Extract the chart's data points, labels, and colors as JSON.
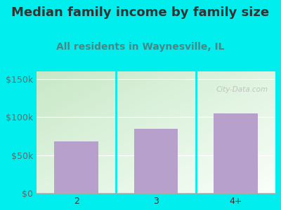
{
  "categories": [
    "2",
    "3",
    "4+"
  ],
  "values": [
    68000,
    85000,
    105000
  ],
  "bar_color": "#b8a0cc",
  "title": "Median family income by family size",
  "subtitle": "All residents in Waynesville, IL",
  "title_color": "#333333",
  "subtitle_color": "#448888",
  "bg_color": "#00eeee",
  "yticks": [
    0,
    50000,
    100000,
    150000
  ],
  "ytick_labels": [
    "$0",
    "$50k",
    "$100k",
    "$150k"
  ],
  "ylim": [
    0,
    160000
  ],
  "watermark": "City-Data.com",
  "title_fontsize": 13,
  "subtitle_fontsize": 10,
  "tick_fontsize": 9,
  "ytick_color": "#666666"
}
